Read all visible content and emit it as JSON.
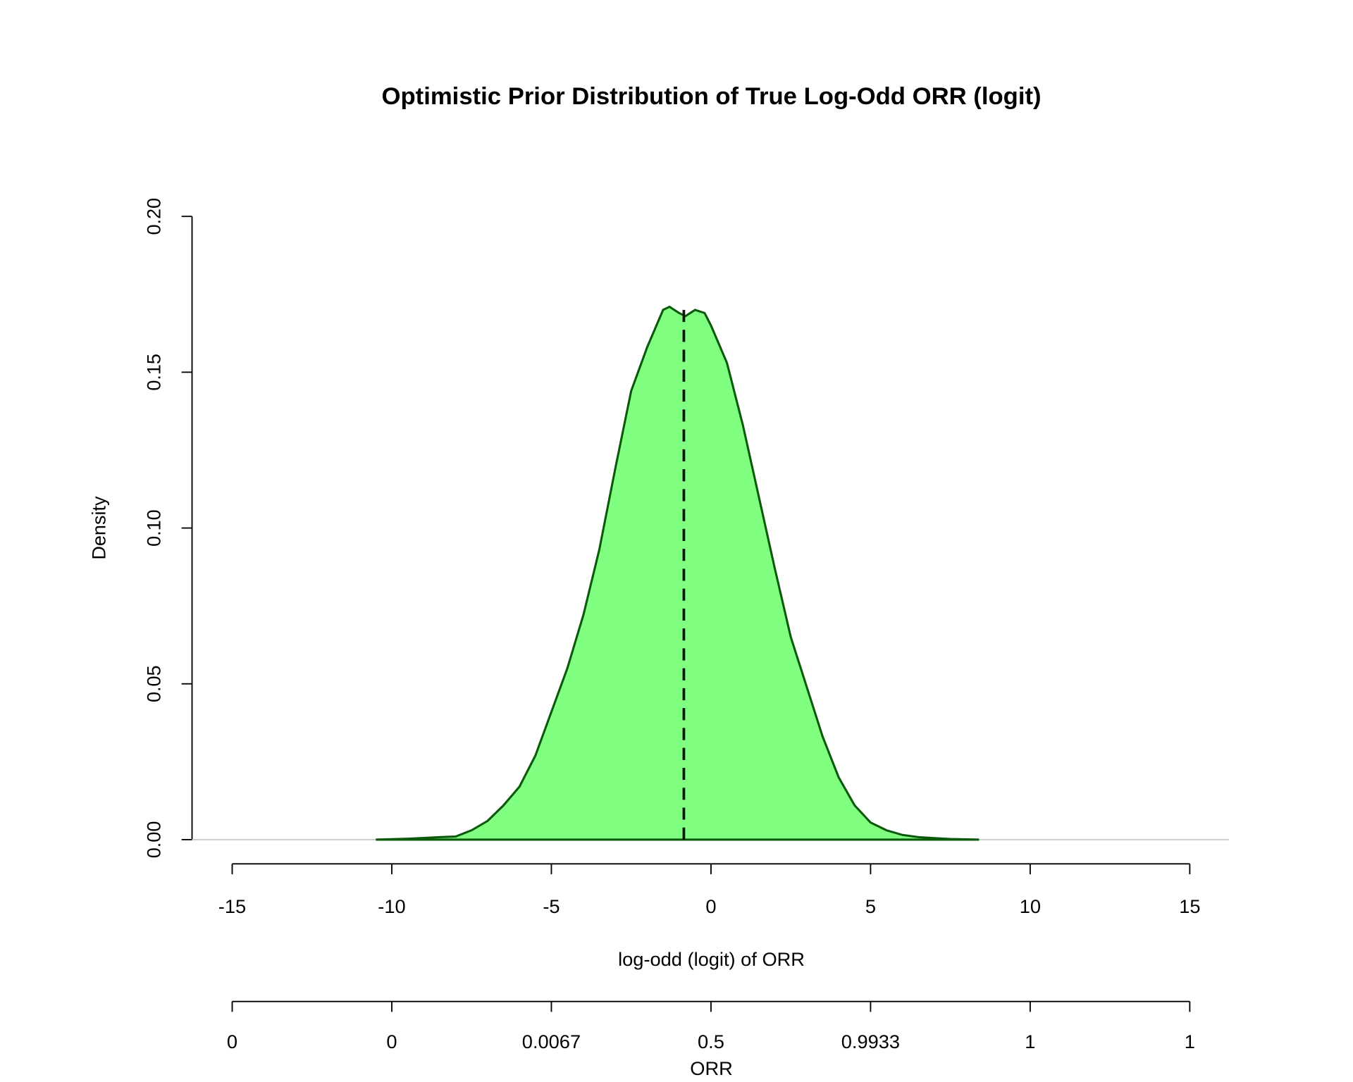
{
  "chart_data": {
    "type": "area",
    "title": "Optimistic Prior Distribution of True Log-Odd ORR (logit)",
    "xlabel": "log-odd (logit) of ORR",
    "ylabel": "Density",
    "x2label": "ORR",
    "x": [
      -10.5,
      -9.5,
      -8.5,
      -8,
      -7.5,
      -7,
      -6.5,
      -6,
      -5.5,
      -5,
      -4.5,
      -4,
      -3.5,
      -3,
      -2.5,
      -2,
      -1.5,
      -1.3,
      -1,
      -0.8,
      -0.5,
      -0.2,
      0,
      0.5,
      1,
      1.5,
      2,
      2.5,
      3,
      3.5,
      4,
      4.5,
      5,
      5.5,
      6,
      6.5,
      7,
      7.5,
      8.4
    ],
    "values": [
      0,
      0.0003,
      0.0008,
      0.001,
      0.003,
      0.006,
      0.011,
      0.017,
      0.027,
      0.041,
      0.055,
      0.072,
      0.093,
      0.119,
      0.144,
      0.158,
      0.17,
      0.171,
      0.169,
      0.168,
      0.17,
      0.169,
      0.165,
      0.153,
      0.133,
      0.11,
      0.087,
      0.065,
      0.049,
      0.033,
      0.02,
      0.011,
      0.0055,
      0.003,
      0.0015,
      0.0008,
      0.0005,
      0.0002,
      0
    ],
    "color": "#80ff80",
    "line_color": "#0b5a0b",
    "mean_line": {
      "x": -0.85,
      "y": 0.17
    },
    "xlim": [
      -15,
      15
    ],
    "xticks": [
      -15,
      -10,
      -5,
      0,
      5,
      10,
      15
    ],
    "ylim": [
      0,
      0.2
    ],
    "yticks": [
      {
        "value": 0,
        "label": "0.00"
      },
      {
        "value": 0.05,
        "label": "0.05"
      },
      {
        "value": 0.1,
        "label": "0.10"
      },
      {
        "value": 0.15,
        "label": "0.15"
      },
      {
        "value": 0.2,
        "label": "0.20"
      }
    ],
    "x2scale": "logit",
    "x2ticks": [
      {
        "value": 3.06e-07,
        "label": "0"
      },
      {
        "value": 4.54e-05,
        "label": "0"
      },
      {
        "value": 0.006693,
        "label": "0.0067"
      },
      0.5,
      {
        "value": 0.993307,
        "label": "0.9933"
      },
      {
        "value": 0.9999546,
        "label": "1"
      },
      {
        "value": 0.999999694,
        "label": "1"
      }
    ]
  }
}
